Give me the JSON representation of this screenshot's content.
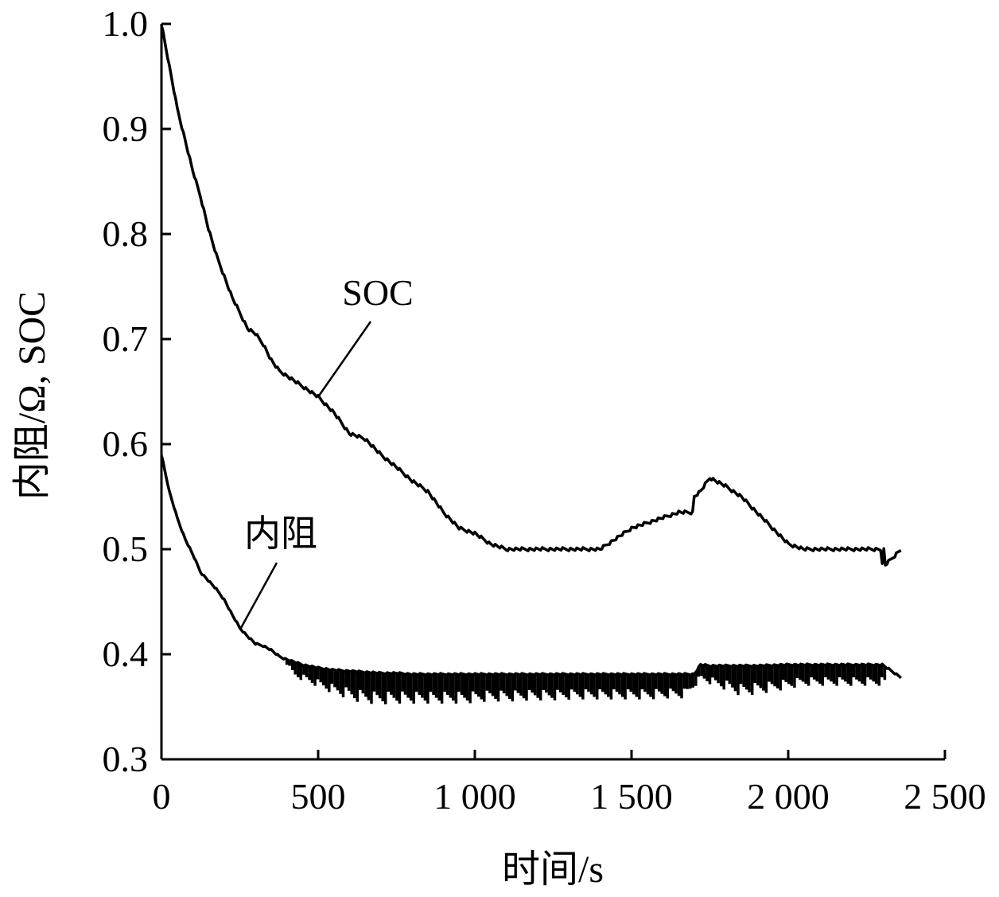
{
  "chart_data": {
    "type": "line",
    "xlabel": "时间/s",
    "ylabel": "内阻/Ω, SOC",
    "xlim": [
      0,
      2500
    ],
    "ylim": [
      0.3,
      1.0
    ],
    "x_ticks": [
      0,
      500,
      1000,
      1500,
      2000,
      2500
    ],
    "x_tick_labels": [
      "0",
      "500",
      "1 000",
      "1 500",
      "2 000",
      "2 500"
    ],
    "y_ticks": [
      0.3,
      0.4,
      0.5,
      0.6,
      0.7,
      0.8,
      0.9,
      1.0
    ],
    "y_tick_labels": [
      "0.3",
      "0.4",
      "0.5",
      "0.6",
      "0.7",
      "0.8",
      "0.9",
      "1.0"
    ],
    "grid": false,
    "annotations": [
      {
        "text": "SOC",
        "target_x": 500,
        "target_y": 0.645
      },
      {
        "text": "内阻",
        "target_x": 250,
        "target_y": 0.423
      }
    ],
    "series": [
      {
        "x": [
          0,
          25,
          50,
          75,
          100,
          125,
          150,
          175,
          200,
          225,
          250,
          275,
          300,
          325,
          350,
          375,
          400,
          425,
          450,
          475,
          500,
          550,
          600,
          650,
          700,
          750,
          800,
          850,
          900,
          950,
          1000,
          1050,
          1100,
          1150,
          1200,
          1250,
          1300,
          1350,
          1400,
          1450,
          1500,
          1550,
          1600,
          1650,
          1695,
          1700,
          1720,
          1750,
          1800,
          1850,
          1900,
          1950,
          2000,
          2050,
          2100,
          2150,
          2200,
          2250,
          2295,
          2300,
          2305,
          2310,
          2360
        ],
        "values": [
          1.0,
          0.96,
          0.92,
          0.89,
          0.86,
          0.835,
          0.805,
          0.78,
          0.76,
          0.74,
          0.725,
          0.71,
          0.705,
          0.695,
          0.68,
          0.67,
          0.665,
          0.66,
          0.655,
          0.65,
          0.645,
          0.63,
          0.61,
          0.605,
          0.59,
          0.578,
          0.565,
          0.555,
          0.535,
          0.52,
          0.515,
          0.505,
          0.5,
          0.5,
          0.5,
          0.5,
          0.5,
          0.5,
          0.5,
          0.51,
          0.52,
          0.525,
          0.53,
          0.535,
          0.535,
          0.55,
          0.555,
          0.568,
          0.56,
          0.55,
          0.535,
          0.52,
          0.505,
          0.5,
          0.5,
          0.5,
          0.5,
          0.5,
          0.5,
          0.485,
          0.5,
          0.485,
          0.5
        ]
      },
      {
        "x": [
          0,
          25,
          50,
          75,
          100,
          125,
          150,
          175,
          200,
          225,
          250,
          275,
          300,
          325,
          350,
          375,
          400,
          450,
          500,
          550,
          600,
          650,
          700,
          750,
          800,
          900,
          1000,
          1100,
          1200,
          1300,
          1400,
          1500,
          1600,
          1700,
          1720,
          1750,
          1800,
          1900,
          2000,
          2100,
          2200,
          2300,
          2360
        ],
        "values": [
          0.59,
          0.555,
          0.53,
          0.51,
          0.495,
          0.478,
          0.47,
          0.462,
          0.452,
          0.438,
          0.425,
          0.417,
          0.41,
          0.408,
          0.404,
          0.398,
          0.395,
          0.39,
          0.387,
          0.385,
          0.384,
          0.383,
          0.382,
          0.382,
          0.381,
          0.381,
          0.381,
          0.381,
          0.381,
          0.381,
          0.381,
          0.381,
          0.381,
          0.381,
          0.39,
          0.389,
          0.389,
          0.389,
          0.39,
          0.39,
          0.39,
          0.39,
          0.378
        ],
        "noise": {
          "x": [
            400,
            425,
            490,
            550,
            620,
            690,
            760,
            830,
            900,
            970,
            1040,
            1110,
            1180,
            1250,
            1320,
            1430,
            1560,
            1620,
            1670,
            1720,
            1850,
            1950,
            2050,
            2150,
            2250,
            2310
          ],
          "low": [
            0.39,
            0.378,
            0.37,
            0.362,
            0.355,
            0.352,
            0.353,
            0.353,
            0.353,
            0.353,
            0.355,
            0.355,
            0.356,
            0.356,
            0.357,
            0.357,
            0.357,
            0.358,
            0.358,
            0.375,
            0.36,
            0.364,
            0.37,
            0.37,
            0.37,
            0.37
          ]
        }
      }
    ]
  }
}
